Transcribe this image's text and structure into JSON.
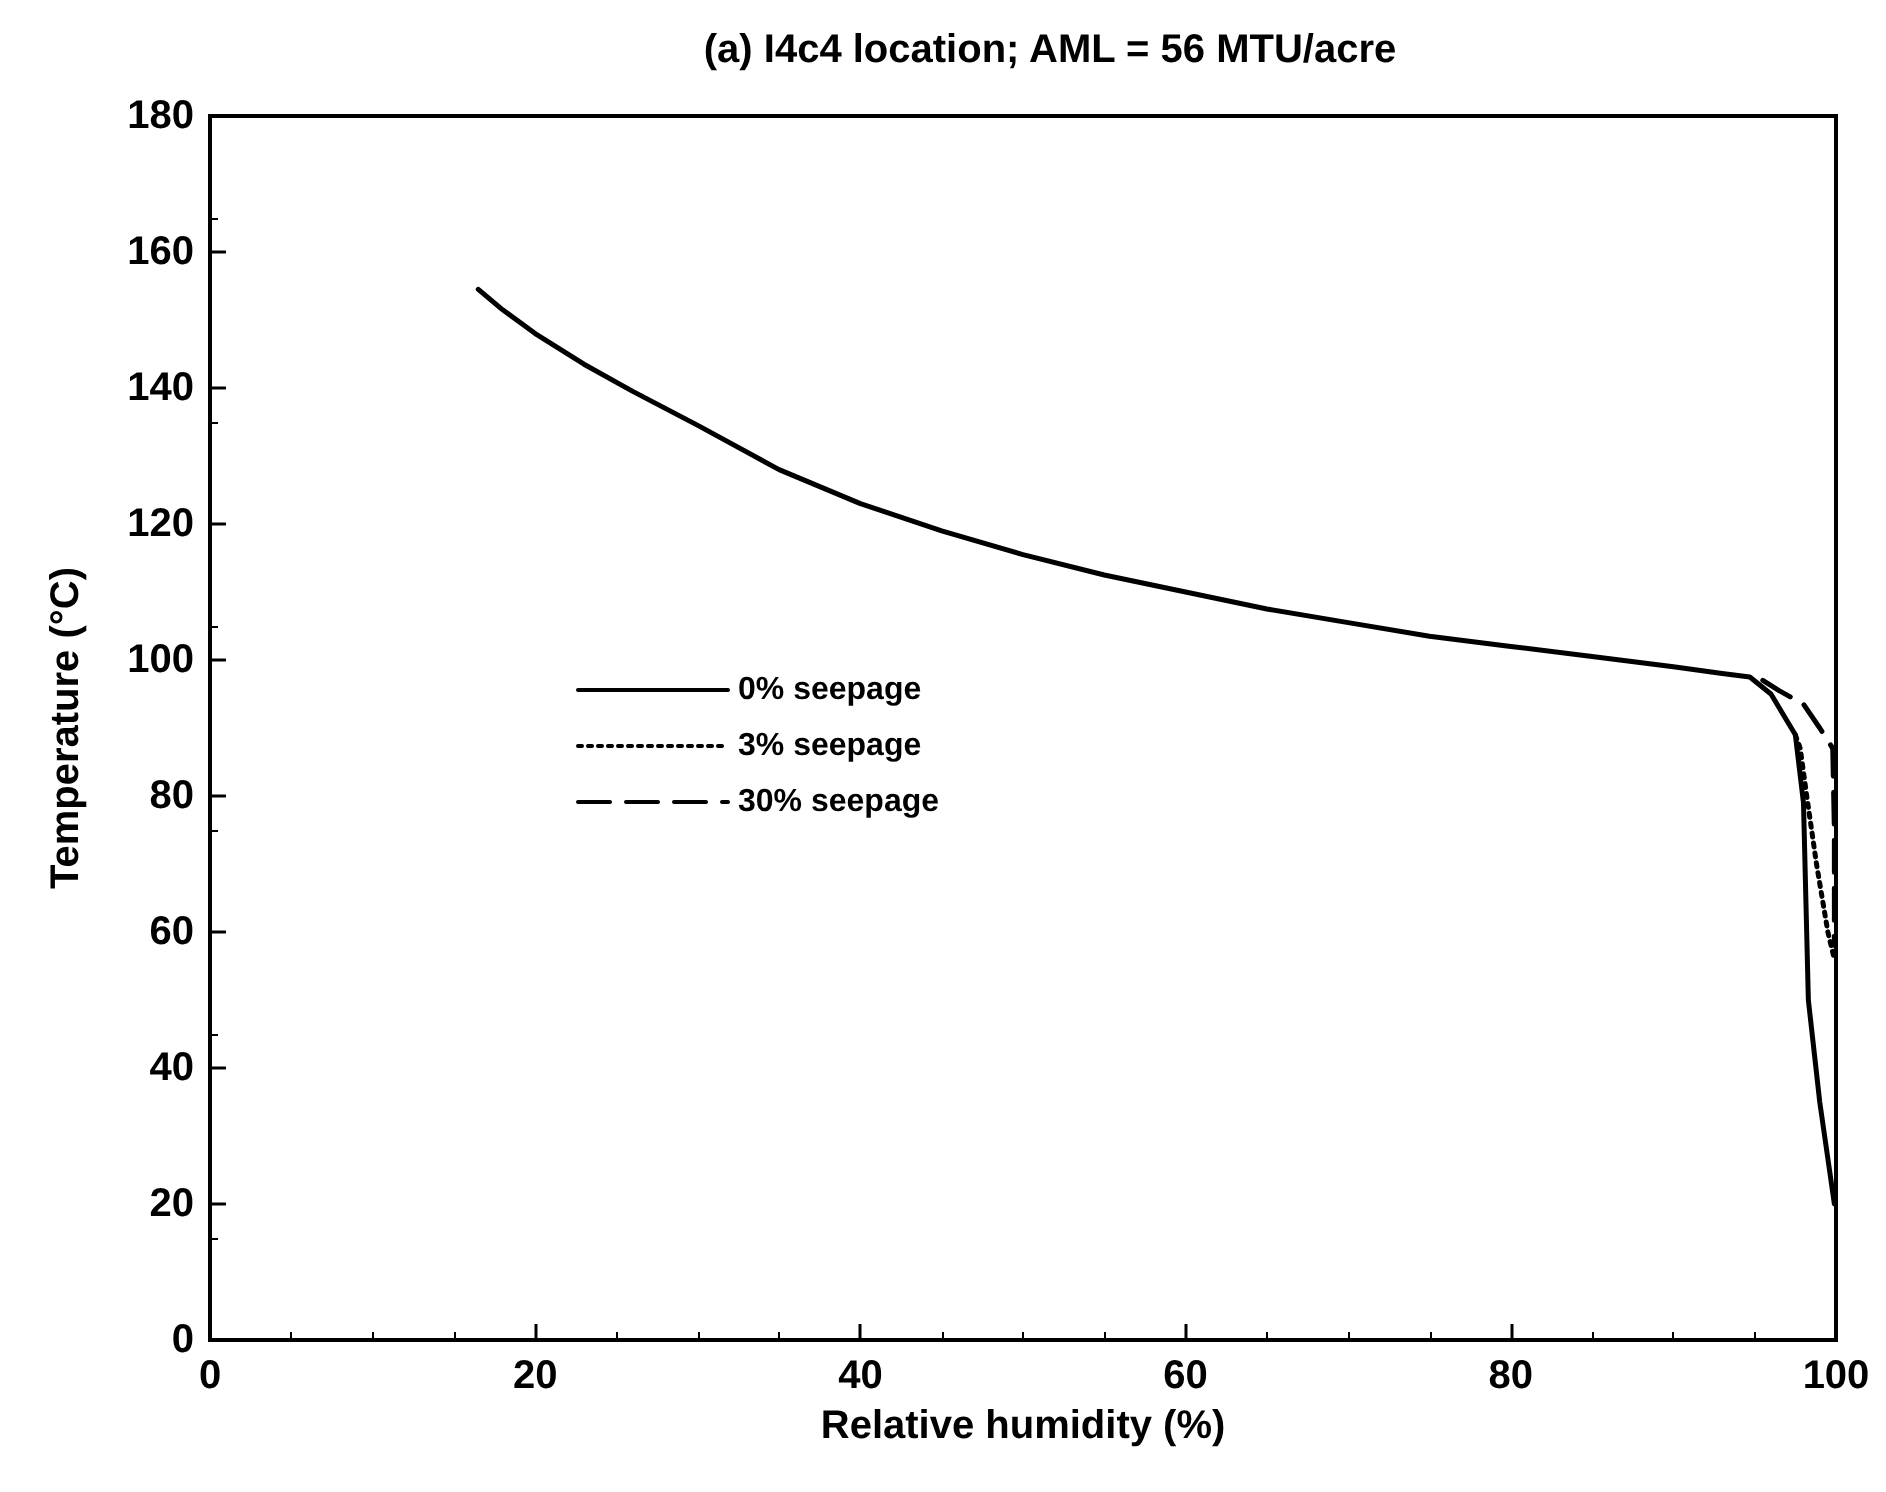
{
  "chart_data": {
    "type": "line",
    "title": "(a) I4c4 location; AML = 56 MTU/acre",
    "xlabel": "Relative humidity (%)",
    "ylabel": "Temperature (°C)",
    "xlim": [
      0,
      100
    ],
    "xticks": [
      0,
      20,
      40,
      60,
      80,
      100
    ],
    "ylim": [
      0,
      180
    ],
    "yticks": [
      0,
      20,
      40,
      60,
      80,
      100,
      120,
      140,
      160,
      180
    ],
    "grid": false,
    "legend": "left",
    "marker": "none",
    "series": [
      {
        "name": "0% seepage",
        "color": "#000000",
        "line_style": "solid",
        "x": [
          16.5,
          18,
          20,
          23,
          26,
          30,
          35,
          40,
          45,
          50,
          55,
          60,
          65,
          70,
          75,
          80,
          85,
          90,
          93,
          94.7,
          96,
          97.5,
          98,
          98.3,
          99,
          99.9
        ],
        "values": [
          154.5,
          151.5,
          148,
          143.5,
          139.5,
          134.5,
          128,
          123,
          119,
          115.5,
          112.5,
          110,
          107.5,
          105.5,
          103.5,
          102,
          100.5,
          99,
          98,
          97.5,
          95,
          89,
          79,
          50,
          35,
          20
        ]
      },
      {
        "name": "3% seepage",
        "color": "#000000",
        "line_style": "dotted",
        "x": [
          97.5,
          97.8,
          98.2,
          98.8,
          99.5,
          99.9
        ],
        "values": [
          89,
          87,
          80,
          70,
          60,
          56
        ]
      },
      {
        "name": "30% seepage",
        "color": "#000000",
        "line_style": "dashed",
        "x": [
          95.5,
          96.5,
          98,
          99,
          99.8,
          99.9,
          99.9
        ],
        "values": [
          97,
          95.5,
          93.5,
          90,
          87,
          75,
          58
        ]
      }
    ]
  }
}
